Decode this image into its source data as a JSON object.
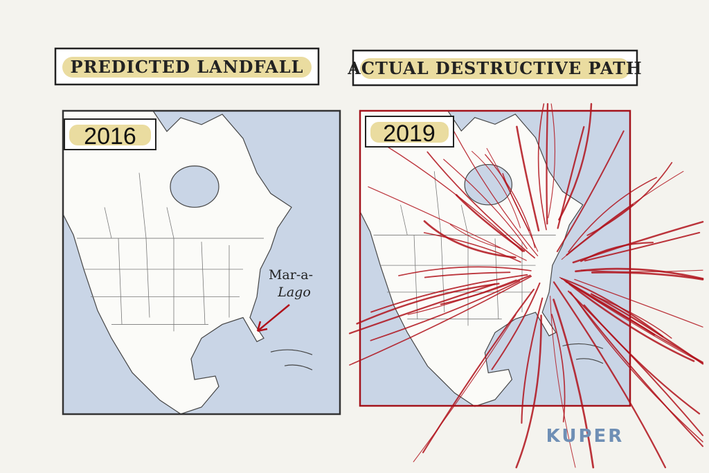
{
  "panels": [
    {
      "heading": "PREDICTED LANDFALL",
      "year": "2016"
    },
    {
      "heading": "ACTUAL DESTRUCTIVE PATH",
      "year": "2019"
    }
  ],
  "annotation": {
    "lines": [
      "Mar-a-",
      "Lago"
    ]
  },
  "signature": "KUPER"
}
